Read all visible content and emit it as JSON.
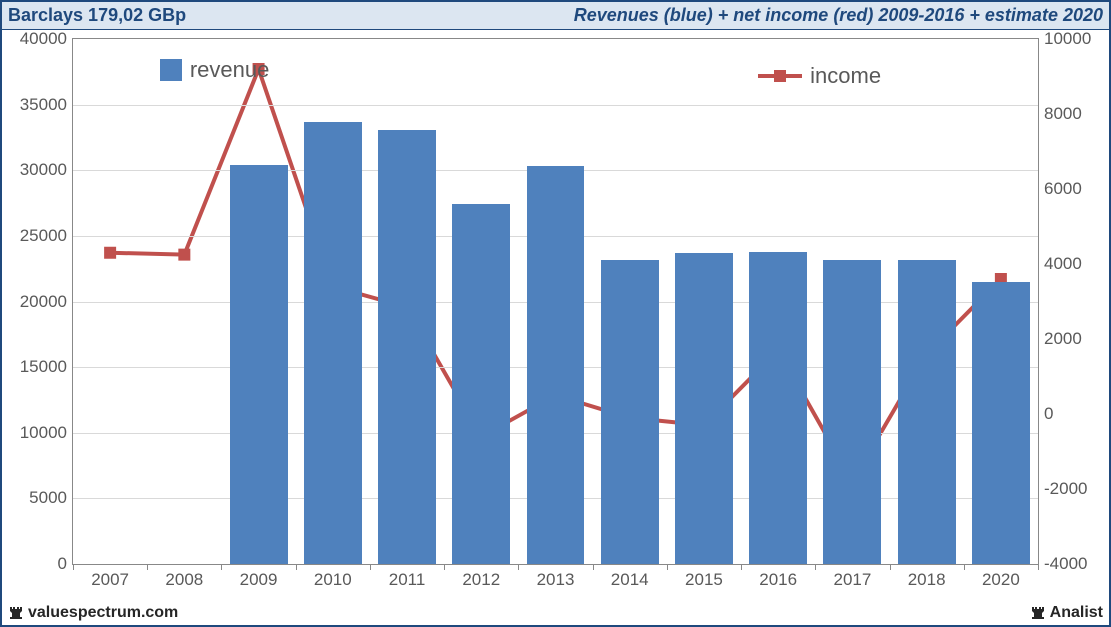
{
  "header": {
    "left": "Barclays 179,02 GBp",
    "right": "Revenues (blue) + net income (red) 2009-2016 + estimate 2020"
  },
  "footer": {
    "left_text": "valuespectrum.com",
    "right_text": "Analist",
    "icon_color": "#262626"
  },
  "chart": {
    "type": "bar+line",
    "background_color": "#ffffff",
    "border_color": "#888888",
    "grid_color": "#d9d9d9",
    "tick_font_size": 17,
    "tick_color": "#595959",
    "categories": [
      "2007",
      "2008",
      "2009",
      "2010",
      "2011",
      "2012",
      "2013",
      "2014",
      "2015",
      "2016",
      "2017",
      "2018",
      "2020"
    ],
    "left_axis": {
      "min": 0,
      "max": 40000,
      "step": 5000,
      "ticks": [
        "0",
        "5000",
        "10000",
        "15000",
        "20000",
        "25000",
        "30000",
        "35000",
        "40000"
      ]
    },
    "right_axis": {
      "min": -4000,
      "max": 10000,
      "step": 2000,
      "ticks": [
        "-4000",
        "-2000",
        "0",
        "2000",
        "4000",
        "6000",
        "8000",
        "10000"
      ]
    },
    "bars": {
      "label": "revenue",
      "color": "#4f81bd",
      "width_ratio": 0.78,
      "values": [
        null,
        null,
        30400,
        33700,
        33100,
        27400,
        30300,
        23200,
        23700,
        23800,
        23200,
        23200,
        21500
      ]
    },
    "line": {
      "label": "income",
      "color": "#c0504d",
      "line_width": 4,
      "marker_size": 12,
      "values": [
        4300,
        4250,
        9200,
        3400,
        2850,
        -600,
        500,
        -100,
        -300,
        1700,
        -1800,
        1600,
        3600
      ]
    },
    "legend": {
      "font_size": 22,
      "revenue_pos": {
        "left_pct": 9,
        "top_pct": 3.5
      },
      "income_pos": {
        "left_pct": 71,
        "top_pct": 4.5
      }
    }
  }
}
